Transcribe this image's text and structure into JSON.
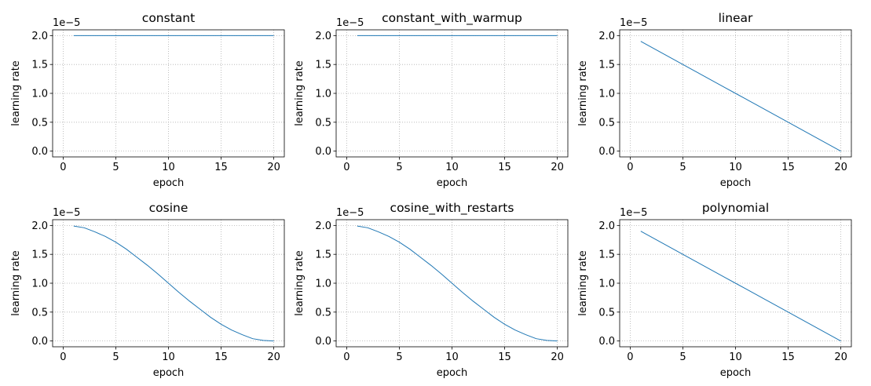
{
  "figure": {
    "background": "#ffffff",
    "line_color": "#1f77b4",
    "grid_color": "#b0b0b0",
    "grid": true,
    "grid_style": "dotted"
  },
  "chart_data": [
    {
      "type": "line",
      "title": "constant",
      "xlabel": "epoch",
      "ylabel": "learning rate",
      "offset_text": "1e−5",
      "xlim": [
        -1,
        21
      ],
      "ylim": [
        -0.1,
        2.1
      ],
      "xticks": [
        0,
        5,
        10,
        15,
        20
      ],
      "xtick_labels": [
        "0",
        "5",
        "10",
        "15",
        "20"
      ],
      "yticks": [
        0.0,
        0.5,
        1.0,
        1.5,
        2.0
      ],
      "ytick_labels": [
        "0.0",
        "0.5",
        "1.0",
        "1.5",
        "2.0"
      ],
      "series": [
        {
          "x": [
            1,
            2,
            3,
            4,
            5,
            6,
            7,
            8,
            9,
            10,
            11,
            12,
            13,
            14,
            15,
            16,
            17,
            18,
            19,
            20
          ],
          "y": [
            2.0,
            2.0,
            2.0,
            2.0,
            2.0,
            2.0,
            2.0,
            2.0,
            2.0,
            2.0,
            2.0,
            2.0,
            2.0,
            2.0,
            2.0,
            2.0,
            2.0,
            2.0,
            2.0,
            2.0
          ]
        }
      ]
    },
    {
      "type": "line",
      "title": "constant_with_warmup",
      "xlabel": "epoch",
      "ylabel": "learning rate",
      "offset_text": "1e−5",
      "xlim": [
        -1,
        21
      ],
      "ylim": [
        -0.1,
        2.1
      ],
      "xticks": [
        0,
        5,
        10,
        15,
        20
      ],
      "xtick_labels": [
        "0",
        "5",
        "10",
        "15",
        "20"
      ],
      "yticks": [
        0.0,
        0.5,
        1.0,
        1.5,
        2.0
      ],
      "ytick_labels": [
        "0.0",
        "0.5",
        "1.0",
        "1.5",
        "2.0"
      ],
      "series": [
        {
          "x": [
            1,
            2,
            3,
            4,
            5,
            6,
            7,
            8,
            9,
            10,
            11,
            12,
            13,
            14,
            15,
            16,
            17,
            18,
            19,
            20
          ],
          "y": [
            2.0,
            2.0,
            2.0,
            2.0,
            2.0,
            2.0,
            2.0,
            2.0,
            2.0,
            2.0,
            2.0,
            2.0,
            2.0,
            2.0,
            2.0,
            2.0,
            2.0,
            2.0,
            2.0,
            2.0
          ]
        }
      ]
    },
    {
      "type": "line",
      "title": "linear",
      "xlabel": "epoch",
      "ylabel": "learning rate",
      "offset_text": "1e−5",
      "xlim": [
        -1,
        21
      ],
      "ylim": [
        -0.1,
        2.1
      ],
      "xticks": [
        0,
        5,
        10,
        15,
        20
      ],
      "xtick_labels": [
        "0",
        "5",
        "10",
        "15",
        "20"
      ],
      "yticks": [
        0.0,
        0.5,
        1.0,
        1.5,
        2.0
      ],
      "ytick_labels": [
        "0.0",
        "0.5",
        "1.0",
        "1.5",
        "2.0"
      ],
      "series": [
        {
          "x": [
            1,
            2,
            3,
            4,
            5,
            6,
            7,
            8,
            9,
            10,
            11,
            12,
            13,
            14,
            15,
            16,
            17,
            18,
            19,
            20
          ],
          "y": [
            1.9,
            1.8,
            1.7,
            1.6,
            1.5,
            1.4,
            1.3,
            1.2,
            1.1,
            1.0,
            0.9,
            0.8,
            0.7,
            0.6,
            0.5,
            0.4,
            0.3,
            0.2,
            0.1,
            0.0
          ]
        }
      ]
    },
    {
      "type": "line",
      "title": "cosine",
      "xlabel": "epoch",
      "ylabel": "learning rate",
      "offset_text": "1e−5",
      "xlim": [
        -1,
        21
      ],
      "ylim": [
        -0.1,
        2.1
      ],
      "xticks": [
        0,
        5,
        10,
        15,
        20
      ],
      "xtick_labels": [
        "0",
        "5",
        "10",
        "15",
        "20"
      ],
      "yticks": [
        0.0,
        0.5,
        1.0,
        1.5,
        2.0
      ],
      "ytick_labels": [
        "0.0",
        "0.5",
        "1.0",
        "1.5",
        "2.0"
      ],
      "series": [
        {
          "x": [
            1,
            2,
            3,
            4,
            5,
            6,
            7,
            8,
            9,
            10,
            11,
            12,
            13,
            14,
            15,
            16,
            17,
            18,
            19,
            20
          ],
          "y": [
            1.99,
            1.96,
            1.89,
            1.81,
            1.71,
            1.59,
            1.45,
            1.31,
            1.16,
            1.0,
            0.84,
            0.69,
            0.55,
            0.41,
            0.29,
            0.19,
            0.11,
            0.04,
            0.01,
            0.0
          ]
        }
      ]
    },
    {
      "type": "line",
      "title": "cosine_with_restarts",
      "xlabel": "epoch",
      "ylabel": "learning rate",
      "offset_text": "1e−5",
      "xlim": [
        -1,
        21
      ],
      "ylim": [
        -0.1,
        2.1
      ],
      "xticks": [
        0,
        5,
        10,
        15,
        20
      ],
      "xtick_labels": [
        "0",
        "5",
        "10",
        "15",
        "20"
      ],
      "yticks": [
        0.0,
        0.5,
        1.0,
        1.5,
        2.0
      ],
      "ytick_labels": [
        "0.0",
        "0.5",
        "1.0",
        "1.5",
        "2.0"
      ],
      "series": [
        {
          "x": [
            1,
            2,
            3,
            4,
            5,
            6,
            7,
            8,
            9,
            10,
            11,
            12,
            13,
            14,
            15,
            16,
            17,
            18,
            19,
            20
          ],
          "y": [
            1.99,
            1.96,
            1.89,
            1.81,
            1.71,
            1.59,
            1.45,
            1.31,
            1.16,
            1.0,
            0.84,
            0.69,
            0.55,
            0.41,
            0.29,
            0.19,
            0.11,
            0.04,
            0.01,
            0.0
          ]
        }
      ]
    },
    {
      "type": "line",
      "title": "polynomial",
      "xlabel": "epoch",
      "ylabel": "learning rate",
      "offset_text": "1e−5",
      "xlim": [
        -1,
        21
      ],
      "ylim": [
        -0.1,
        2.1
      ],
      "xticks": [
        0,
        5,
        10,
        15,
        20
      ],
      "xtick_labels": [
        "0",
        "5",
        "10",
        "15",
        "20"
      ],
      "yticks": [
        0.0,
        0.5,
        1.0,
        1.5,
        2.0
      ],
      "ytick_labels": [
        "0.0",
        "0.5",
        "1.0",
        "1.5",
        "2.0"
      ],
      "series": [
        {
          "x": [
            1,
            2,
            3,
            4,
            5,
            6,
            7,
            8,
            9,
            10,
            11,
            12,
            13,
            14,
            15,
            16,
            17,
            18,
            19,
            20
          ],
          "y": [
            1.9,
            1.8,
            1.7,
            1.6,
            1.5,
            1.4,
            1.3,
            1.2,
            1.1,
            1.0,
            0.9,
            0.8,
            0.7,
            0.6,
            0.5,
            0.4,
            0.3,
            0.2,
            0.1,
            0.0
          ]
        }
      ]
    }
  ]
}
